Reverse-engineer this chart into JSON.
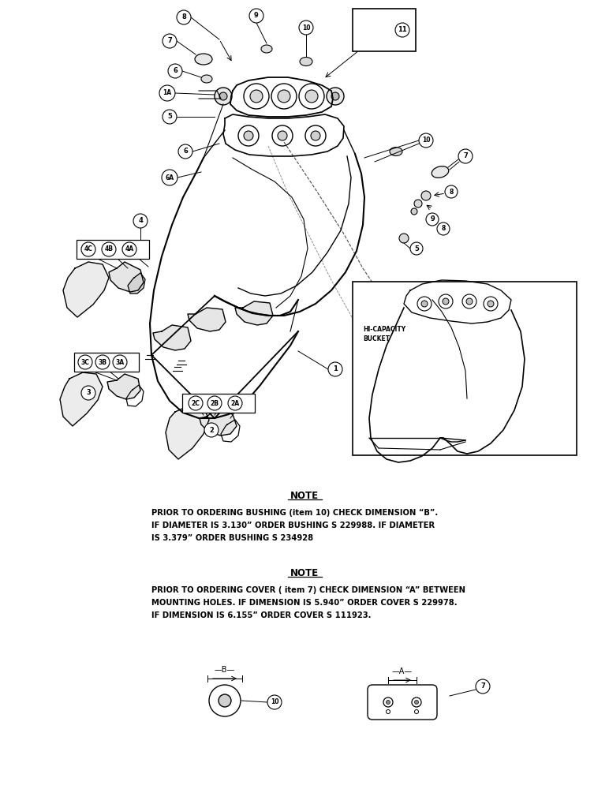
{
  "background_color": "#ffffff",
  "fig_width": 7.72,
  "fig_height": 10.0,
  "note1_title": "NOTE",
  "note1_body_line1": "PRIOR TO ORDERING BUSHING (item 10) CHECK DIMENSION “B”.",
  "note1_body_line2": "IF DIAMETER IS 3.130” ORDER BUSHING S 229988. IF DIAMETER",
  "note1_body_line3": "IS 3.379” ORDER BUSHING S 234928",
  "note2_title": "NOTE",
  "note2_body_line1": "PRIOR TO ORDERING COVER ( item 7) CHECK DIMENSION “A” BETWEEN",
  "note2_body_line2": "MOUNTING HOLES. IF DIMENSION IS 5.940” ORDER COVER S 229978.",
  "note2_body_line3": "IF DIMENSION IS 6.155” ORDER COVER S 111923.",
  "text_color": "#000000"
}
